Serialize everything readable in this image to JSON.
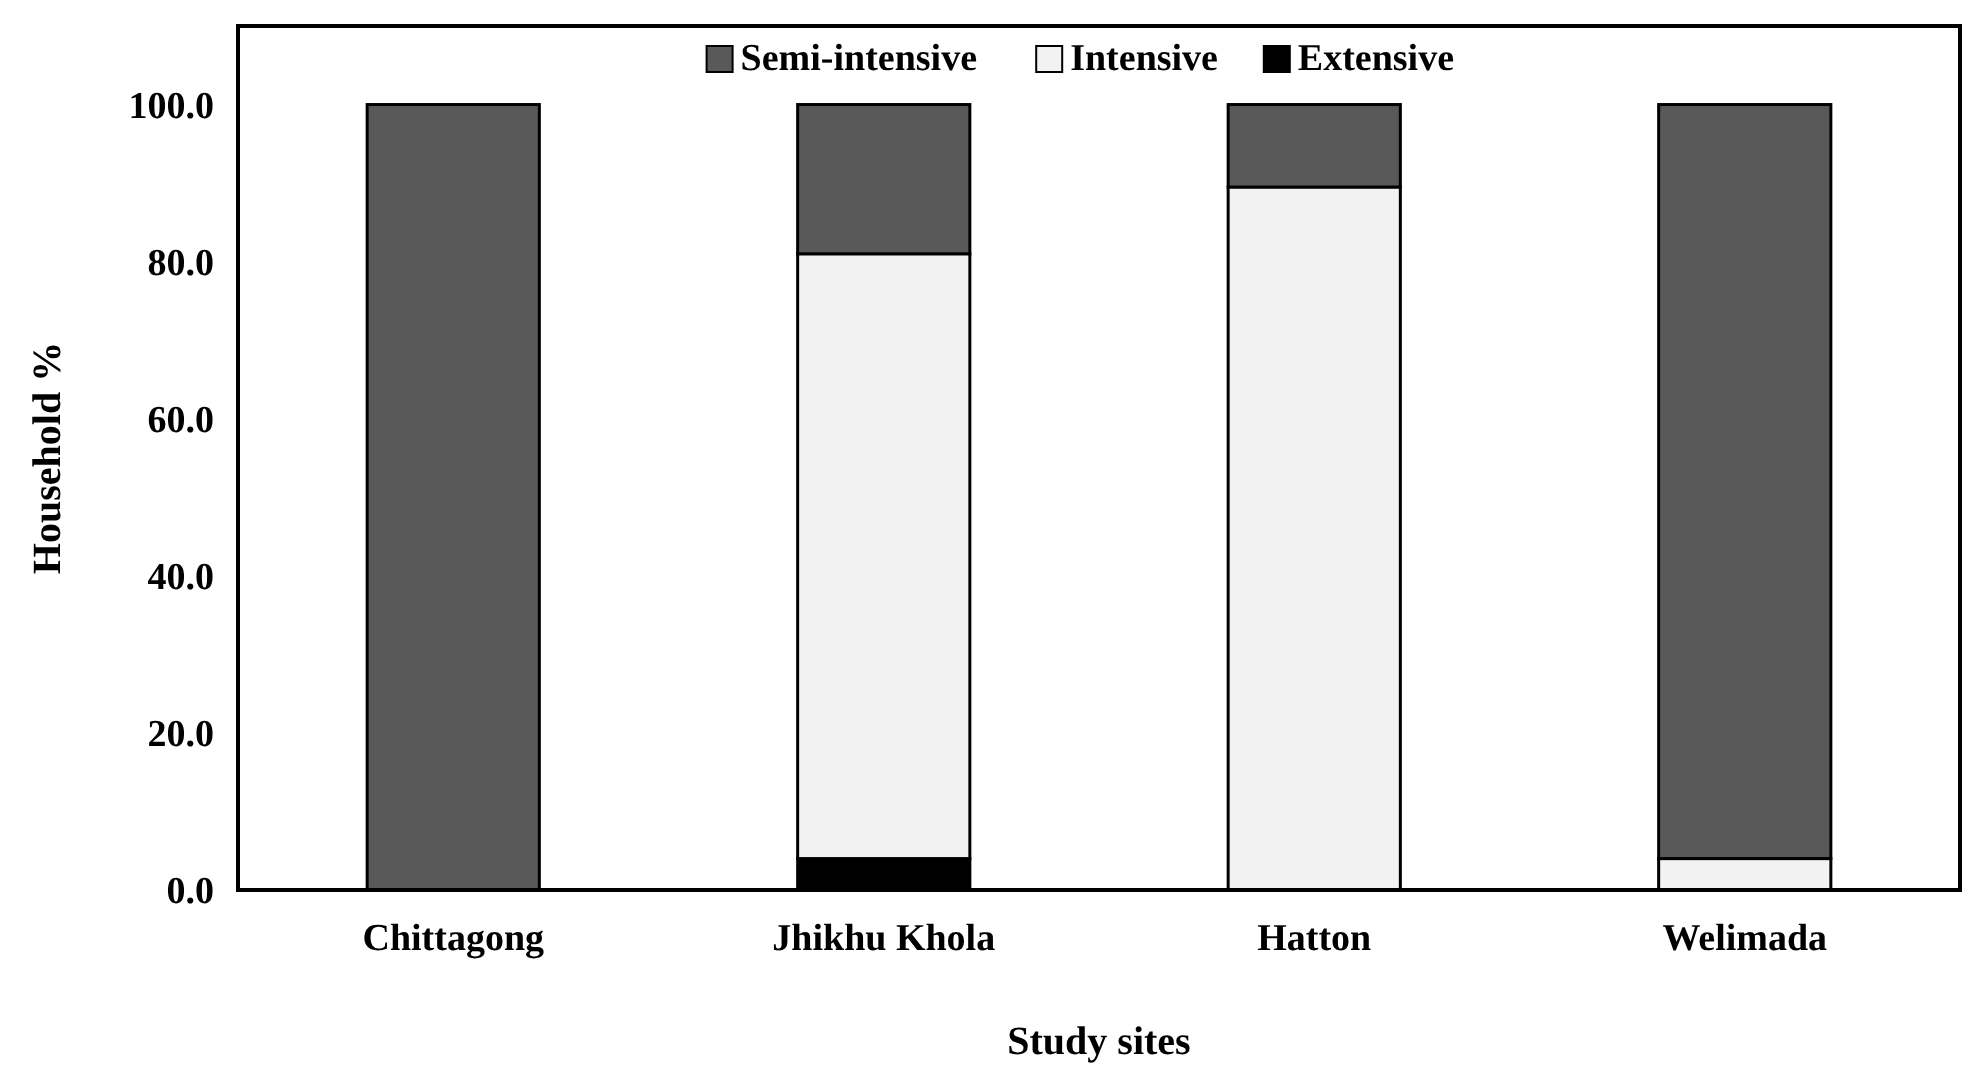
{
  "chart_data": {
    "type": "bar",
    "stacked": true,
    "xlabel": "Study sites",
    "ylabel": "Household %",
    "categories": [
      "Chittagong",
      "Jhikhu Khola",
      "Hatton",
      "Welimada"
    ],
    "series": [
      {
        "name": "Extensive",
        "color": "#000000",
        "values": [
          0,
          4,
          0,
          0
        ]
      },
      {
        "name": "Intensive",
        "color": "#f2f2f2",
        "values": [
          0,
          77,
          89.5,
          4
        ]
      },
      {
        "name": "Semi-intensive",
        "color": "#595959",
        "values": [
          100,
          19,
          10.5,
          96
        ]
      }
    ],
    "ylim": [
      0,
      110
    ],
    "yticks": [
      {
        "value": 0,
        "label": "0.0"
      },
      {
        "value": 20,
        "label": "20.0"
      },
      {
        "value": 40,
        "label": "40.0"
      },
      {
        "value": 60,
        "label": "60.0"
      },
      {
        "value": 80,
        "label": "80.0"
      },
      {
        "value": 100,
        "label": "100.0"
      }
    ],
    "legend": "top",
    "grid": false
  }
}
